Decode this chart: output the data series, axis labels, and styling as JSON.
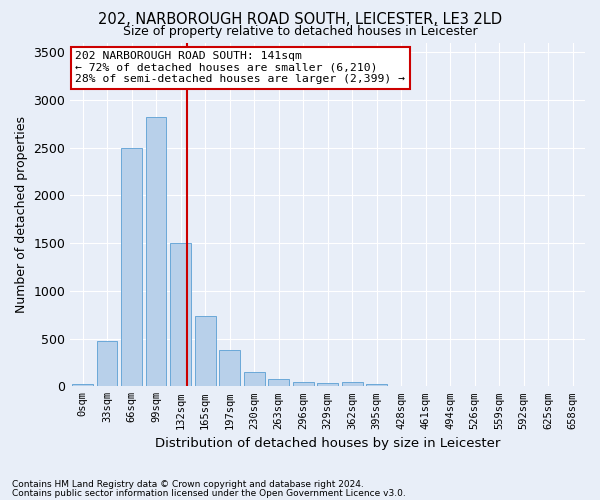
{
  "title1": "202, NARBOROUGH ROAD SOUTH, LEICESTER, LE3 2LD",
  "title2": "Size of property relative to detached houses in Leicester",
  "xlabel": "Distribution of detached houses by size in Leicester",
  "ylabel": "Number of detached properties",
  "bar_labels": [
    "0sqm",
    "33sqm",
    "66sqm",
    "99sqm",
    "132sqm",
    "165sqm",
    "197sqm",
    "230sqm",
    "263sqm",
    "296sqm",
    "329sqm",
    "362sqm",
    "395sqm",
    "428sqm",
    "461sqm",
    "494sqm",
    "526sqm",
    "559sqm",
    "592sqm",
    "625sqm",
    "658sqm"
  ],
  "bar_values": [
    25,
    470,
    2500,
    2825,
    1500,
    740,
    380,
    150,
    80,
    50,
    30,
    50,
    25,
    5,
    3,
    2,
    2,
    2,
    2,
    2,
    2
  ],
  "bar_color": "#b8d0ea",
  "bar_edgecolor": "#5a9fd4",
  "bg_color": "#e8eef8",
  "grid_color": "#ffffff",
  "vline_color": "#cc0000",
  "annotation_lines": [
    "202 NARBOROUGH ROAD SOUTH: 141sqm",
    "← 72% of detached houses are smaller (6,210)",
    "28% of semi-detached houses are larger (2,399) →"
  ],
  "annotation_box_color": "#ffffff",
  "annotation_box_edgecolor": "#cc0000",
  "footnote1": "Contains HM Land Registry data © Crown copyright and database right 2024.",
  "footnote2": "Contains public sector information licensed under the Open Government Licence v3.0.",
  "ylim": [
    0,
    3600
  ],
  "yticks": [
    0,
    500,
    1000,
    1500,
    2000,
    2500,
    3000,
    3500
  ]
}
